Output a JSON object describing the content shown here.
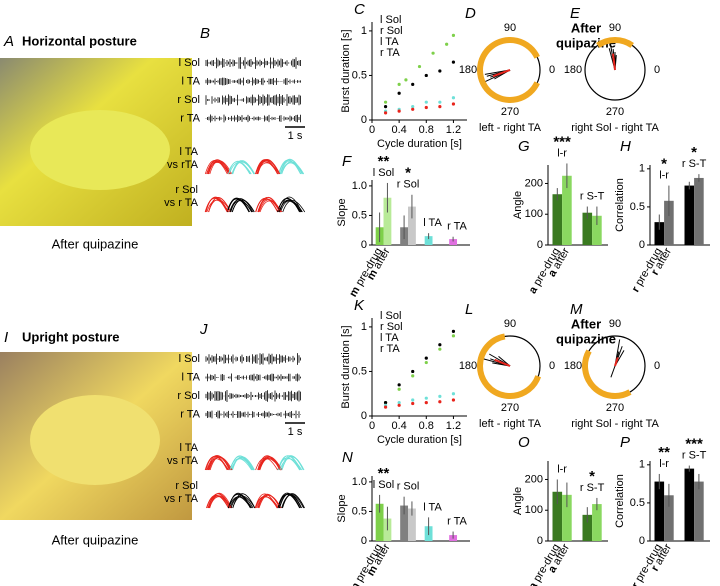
{
  "top": {
    "photo_label": "A",
    "title": "Horizontal posture",
    "caption": "After quipazine",
    "traces_label": "B",
    "traces": [
      "l Sol",
      "l TA",
      "r Sol",
      "r TA"
    ],
    "scale": "1 s",
    "overlay1": [
      "l TA",
      "vs rTA"
    ],
    "overlay2": [
      "r Sol",
      "vs r TA"
    ],
    "note": [
      "After",
      "quipazine"
    ]
  },
  "bottom": {
    "photo_label": "I",
    "title": "Upright posture",
    "caption": "After quipazine",
    "traces_label": "J",
    "traces": [
      "l Sol",
      "l TA",
      "r Sol",
      "r TA"
    ],
    "scale": "1 s",
    "overlay1": [
      "l TA",
      "vs rTA"
    ],
    "overlay2": [
      "r Sol",
      "vs r TA"
    ],
    "note": [
      "After",
      "quipazine"
    ]
  },
  "chart_data": [
    {
      "type": "scatter",
      "label": "C",
      "xlabel": "Cycle duration [s]",
      "ylabel": "Burst duration [s]",
      "xlim": [
        0,
        1.4
      ],
      "ylim": [
        0,
        1.1
      ],
      "xticks": [
        0,
        0.4,
        0.8,
        1.2
      ],
      "yticks": [
        0,
        0.5,
        1
      ],
      "series": [
        {
          "name": "l Sol",
          "color": "#7ed04a",
          "x": [
            0.2,
            0.4,
            0.5,
            0.7,
            0.9,
            1.1,
            1.2
          ],
          "values": [
            0.2,
            0.4,
            0.45,
            0.6,
            0.75,
            0.85,
            0.95
          ]
        },
        {
          "name": "r Sol",
          "color": "#000000",
          "x": [
            0.2,
            0.4,
            0.6,
            0.8,
            1.0,
            1.2
          ],
          "values": [
            0.15,
            0.3,
            0.4,
            0.5,
            0.55,
            0.65
          ]
        },
        {
          "name": "l TA",
          "color": "#6ee0d8",
          "x": [
            0.2,
            0.4,
            0.6,
            0.8,
            1.0,
            1.2
          ],
          "values": [
            0.1,
            0.12,
            0.15,
            0.2,
            0.2,
            0.25
          ]
        },
        {
          "name": "r TA",
          "color": "#e8241c",
          "x": [
            0.2,
            0.4,
            0.6,
            0.8,
            1.0,
            1.2
          ],
          "values": [
            0.08,
            0.1,
            0.12,
            0.14,
            0.15,
            0.18
          ]
        }
      ]
    },
    {
      "type": "polar",
      "label": "D",
      "caption": "left - right TA",
      "angle_ticks": [
        90,
        0,
        270,
        180
      ],
      "arc": [
        25,
        335
      ],
      "angles": [
        195,
        200,
        205,
        210,
        190
      ],
      "lengths": [
        0.8,
        0.7,
        0.9,
        0.6,
        0.85
      ],
      "mean": [
        200,
        0.6
      ]
    },
    {
      "type": "polar",
      "label": "E",
      "caption": "right Sol - right TA",
      "angle_ticks": [
        90,
        0,
        270,
        180
      ],
      "arc": [
        55,
        125
      ],
      "angles": [
        95,
        100,
        90,
        105,
        85
      ],
      "lengths": [
        0.7,
        0.8,
        0.6,
        0.75,
        0.5
      ],
      "mean": [
        97,
        0.55
      ]
    },
    {
      "type": "bar",
      "label": "F",
      "ylabel": "Slope",
      "ylim": [
        0,
        1.1
      ],
      "yticks": [
        0,
        0.5,
        {
          "value": 1,
          "label": "1.0"
        }
      ],
      "categories": [
        "l Sol",
        "r Sol",
        "l TA",
        "r TA"
      ],
      "prefix": "m",
      "series": [
        {
          "name": "pre-drug",
          "colors": [
            "#7ed04a",
            "#808080",
            "#6ee0d8",
            "#e070e0"
          ],
          "values": [
            0.3,
            0.3,
            0.15,
            0.1
          ],
          "errors": [
            0.25,
            0.2,
            0.05,
            0.04
          ]
        },
        {
          "name": "after",
          "colors": [
            "#b8ea98",
            "#c8c8c8",
            "#6ee0d8",
            "#e070e0"
          ],
          "values": [
            0.8,
            0.65,
            null,
            null
          ],
          "errors": [
            0.25,
            0.2,
            null,
            null
          ]
        }
      ],
      "annotations": [
        {
          "text": "**",
          "category": 0
        },
        {
          "text": "*",
          "category": 1
        }
      ]
    },
    {
      "type": "bar",
      "label": "G",
      "ylabel": "Angle",
      "ylim": [
        0,
        260
      ],
      "yticks": [
        0,
        100,
        200
      ],
      "categories": [
        "l-r",
        "r S-T"
      ],
      "prefix": "a",
      "series": [
        {
          "name": "pre-drug",
          "colors": [
            "#3a7a20",
            "#3a7a20"
          ],
          "values": [
            165,
            105
          ],
          "errors": [
            20,
            20
          ]
        },
        {
          "name": "after",
          "colors": [
            "#8ad860",
            "#8ad860"
          ],
          "values": [
            225,
            95
          ],
          "errors": [
            40,
            30
          ]
        }
      ],
      "annotations": [
        {
          "text": "***",
          "category": 0
        }
      ]
    },
    {
      "type": "bar",
      "label": "H",
      "ylabel": "Correlation",
      "ylim": [
        0,
        1.05
      ],
      "yticks": [
        0,
        0.5,
        1
      ],
      "categories": [
        "l-r",
        "r S-T"
      ],
      "prefix": "r",
      "series": [
        {
          "name": "pre-drug",
          "colors": [
            "#000000",
            "#000000"
          ],
          "values": [
            0.3,
            0.78
          ],
          "errors": [
            0.1,
            0.05
          ]
        },
        {
          "name": "after",
          "colors": [
            "#707070",
            "#707070"
          ],
          "values": [
            0.58,
            0.88
          ],
          "errors": [
            0.2,
            0.05
          ]
        }
      ],
      "annotations": [
        {
          "text": "*",
          "category": 0
        },
        {
          "text": "*",
          "category": 1
        }
      ]
    },
    {
      "type": "scatter",
      "label": "K",
      "xlabel": "Cycle duration [s]",
      "ylabel": "Burst duration [s]",
      "xlim": [
        0,
        1.4
      ],
      "ylim": [
        0,
        1.1
      ],
      "xticks": [
        0,
        0.4,
        0.8,
        1.2
      ],
      "yticks": [
        0,
        0.5,
        1
      ],
      "series": [
        {
          "name": "l Sol",
          "color": "#7ed04a",
          "x": [
            0.2,
            0.4,
            0.6,
            0.8,
            1.0,
            1.2
          ],
          "values": [
            0.15,
            0.3,
            0.45,
            0.6,
            0.75,
            0.9
          ]
        },
        {
          "name": "r Sol",
          "color": "#000000",
          "x": [
            0.2,
            0.4,
            0.6,
            0.8,
            1.0,
            1.2
          ],
          "values": [
            0.15,
            0.35,
            0.5,
            0.65,
            0.8,
            0.95
          ]
        },
        {
          "name": "l TA",
          "color": "#6ee0d8",
          "x": [
            0.2,
            0.4,
            0.6,
            0.8,
            1.0,
            1.2
          ],
          "values": [
            0.12,
            0.15,
            0.18,
            0.2,
            0.22,
            0.25
          ]
        },
        {
          "name": "r TA",
          "color": "#e8241c",
          "x": [
            0.2,
            0.4,
            0.6,
            0.8,
            1.0,
            1.2
          ],
          "values": [
            0.1,
            0.12,
            0.14,
            0.15,
            0.16,
            0.18
          ]
        }
      ]
    },
    {
      "type": "polar",
      "label": "L",
      "caption": "left - right TA",
      "angle_ticks": [
        90,
        0,
        270,
        180
      ],
      "arc": [
        100,
        340
      ],
      "angles": [
        150,
        160,
        170,
        140,
        165
      ],
      "lengths": [
        0.8,
        0.7,
        0.6,
        0.5,
        0.9
      ],
      "mean": [
        158,
        0.55
      ]
    },
    {
      "type": "polar",
      "label": "M",
      "caption": "right Sol - right TA",
      "angle_ticks": [
        90,
        0,
        270,
        180
      ],
      "arc": [
        150,
        300
      ],
      "angles": [
        60,
        70,
        80,
        250,
        75
      ],
      "lengths": [
        0.6,
        0.7,
        0.9,
        0.4,
        0.5
      ],
      "mean": [
        72,
        0.3
      ]
    },
    {
      "type": "bar",
      "label": "N",
      "ylabel": "Slope",
      "ylim": [
        0,
        1.1
      ],
      "yticks": [
        0,
        0.5,
        {
          "value": 1,
          "label": "1.0"
        }
      ],
      "categories": [
        "l Sol",
        "r Sol",
        "l TA",
        "r TA"
      ],
      "prefix": "m",
      "series": [
        {
          "name": "pre-drug",
          "colors": [
            "#7ed04a",
            "#808080",
            "#6ee0d8",
            "#e070e0"
          ],
          "values": [
            0.63,
            0.6,
            0.25,
            0.1
          ],
          "errors": [
            0.15,
            0.15,
            0.15,
            0.06
          ]
        },
        {
          "name": "after",
          "colors": [
            "#b8ea98",
            "#c8c8c8",
            "#6ee0d8",
            "#e070e0"
          ],
          "values": [
            0.38,
            0.55,
            null,
            null
          ],
          "errors": [
            0.2,
            0.12,
            null,
            null
          ]
        }
      ],
      "annotations": [
        {
          "text": "**",
          "category": 0
        }
      ]
    },
    {
      "type": "bar",
      "label": "O",
      "ylabel": "Angle",
      "ylim": [
        0,
        260
      ],
      "yticks": [
        0,
        100,
        200
      ],
      "categories": [
        "l-r",
        "r S-T"
      ],
      "prefix": "a",
      "series": [
        {
          "name": "pre-drug",
          "colors": [
            "#3a7a20",
            "#3a7a20"
          ],
          "values": [
            160,
            85
          ],
          "errors": [
            40,
            25
          ]
        },
        {
          "name": "after",
          "colors": [
            "#8ad860",
            "#8ad860"
          ],
          "values": [
            150,
            120
          ],
          "errors": [
            40,
            20
          ]
        }
      ],
      "annotations": [
        {
          "text": "*",
          "category": 1
        }
      ]
    },
    {
      "type": "bar",
      "label": "P",
      "ylabel": "Correlation",
      "ylim": [
        0,
        1.05
      ],
      "yticks": [
        0,
        0.5,
        1
      ],
      "categories": [
        "l-r",
        "r S-T"
      ],
      "prefix": "r",
      "series": [
        {
          "name": "pre-drug",
          "colors": [
            "#000000",
            "#000000"
          ],
          "values": [
            0.78,
            0.95
          ],
          "errors": [
            0.1,
            0.04
          ]
        },
        {
          "name": "after",
          "colors": [
            "#707070",
            "#707070"
          ],
          "values": [
            0.6,
            0.78
          ],
          "errors": [
            0.15,
            0.1
          ]
        }
      ],
      "annotations": [
        {
          "text": "**",
          "category": 0
        },
        {
          "text": "***",
          "category": 1
        }
      ]
    }
  ]
}
